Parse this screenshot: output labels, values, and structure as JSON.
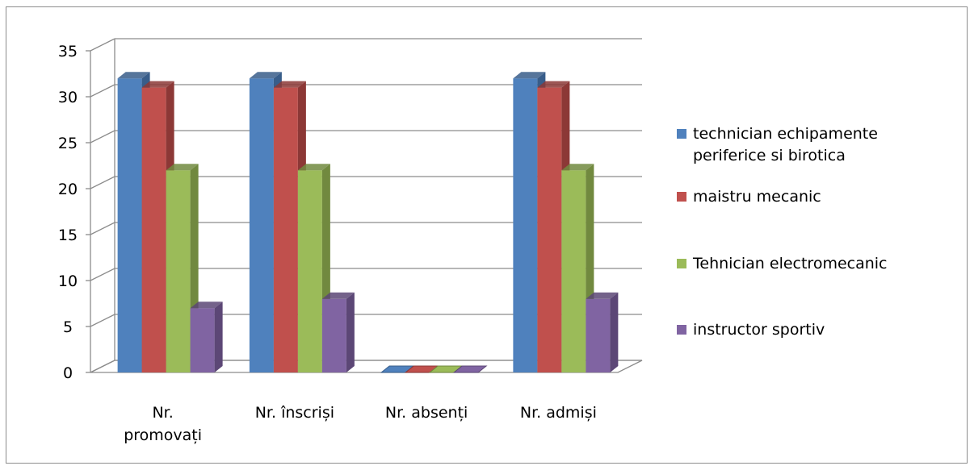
{
  "chart_data": {
    "type": "bar",
    "title": "",
    "xlabel": "",
    "ylabel": "",
    "ylim": [
      0,
      35
    ],
    "yticks": [
      "0",
      "5",
      "10",
      "15",
      "20",
      "25",
      "30",
      "35"
    ],
    "grid": true,
    "legend_position": "right",
    "categories": [
      [
        "Nr.",
        "promovați"
      ],
      [
        "Nr. înscriși"
      ],
      [
        "Nr. absenți"
      ],
      [
        "Nr. admiși"
      ]
    ],
    "series": [
      {
        "name": "technician echipamente periferice si birotica",
        "legend_lines": [
          "technician echipamente",
          "periferice si birotica"
        ],
        "color": "#4f81bd",
        "side": "#385d8a",
        "values": [
          32,
          32,
          0,
          32
        ]
      },
      {
        "name": "maistru mecanic",
        "legend_lines": [
          "maistru mecanic"
        ],
        "color": "#c0504d",
        "side": "#8c3836",
        "values": [
          31,
          31,
          0,
          31
        ]
      },
      {
        "name": "Tehnician electromecanic",
        "legend_lines": [
          "Tehnician electromecanic"
        ],
        "color": "#9bbb59",
        "side": "#71893f",
        "values": [
          22,
          22,
          0,
          22
        ]
      },
      {
        "name": "instructor sportiv",
        "legend_lines": [
          "instructor sportiv"
        ],
        "color": "#8064a2",
        "side": "#5c4776",
        "values": [
          7,
          8,
          0,
          8
        ]
      }
    ]
  }
}
